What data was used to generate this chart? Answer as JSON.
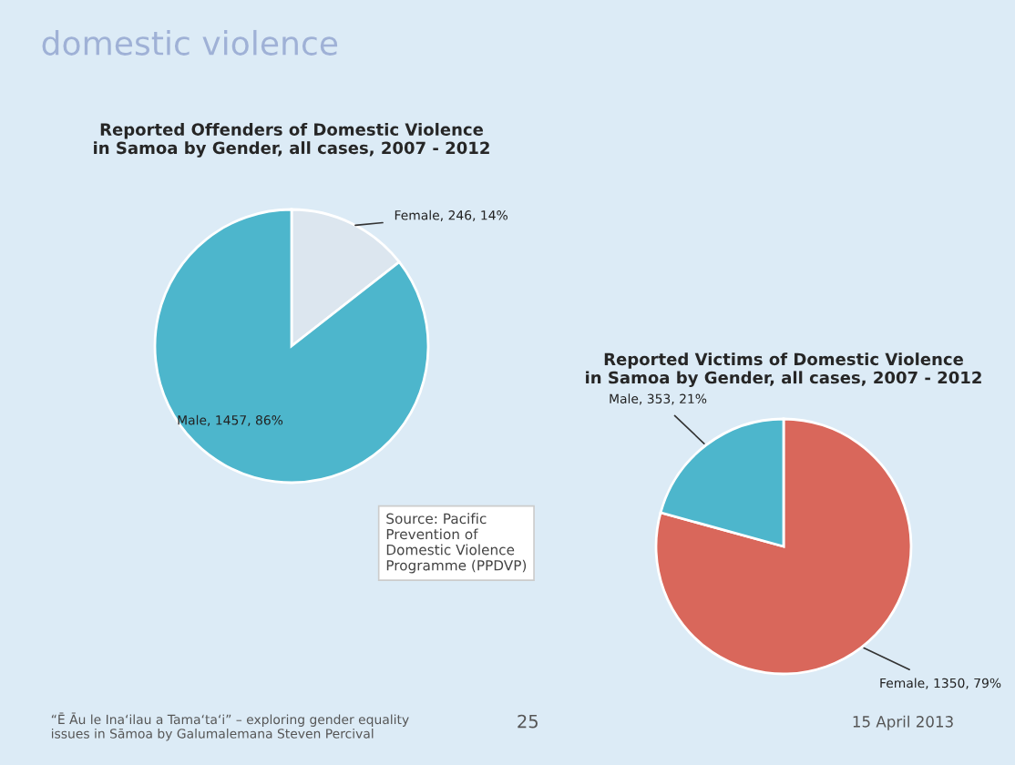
{
  "chart_data": [
    {
      "type": "pie",
      "title": "Reported Offenders of Domestic Violence\nin Samoa by Gender, all cases, 2007 - 2012",
      "categories": [
        "Female",
        "Male"
      ],
      "values": [
        246,
        1457
      ],
      "colors": [
        "#dce6ef",
        "#4db6cc"
      ],
      "value_labels": [
        "246, 14%",
        "1457, 86%"
      ],
      "annotations": [
        "domestic violence",
        "“Ē Āu le Ina‘ilau a Tama‘ta‘i” – exploring gender equality\nissues in Sāmoa by Galumalemana Steven Percival",
        "25",
        "15 April 2013"
      ]
    },
    {
      "type": "pie",
      "title": "Reported Victims of Domestic Violence\nin Samoa by Gender, all cases, 2007 - 2012",
      "categories": [
        "Female",
        "Male"
      ],
      "values": [
        1350,
        353
      ],
      "colors": [
        "#d9675b",
        "#4db6cc"
      ],
      "value_labels": [
        "1350, 79%",
        "353, 21%"
      ],
      "annotations": [
        "Source: Pacific\nPrevention of\nDomestic Violence\nProgramme (PPDVP)"
      ]
    }
  ]
}
